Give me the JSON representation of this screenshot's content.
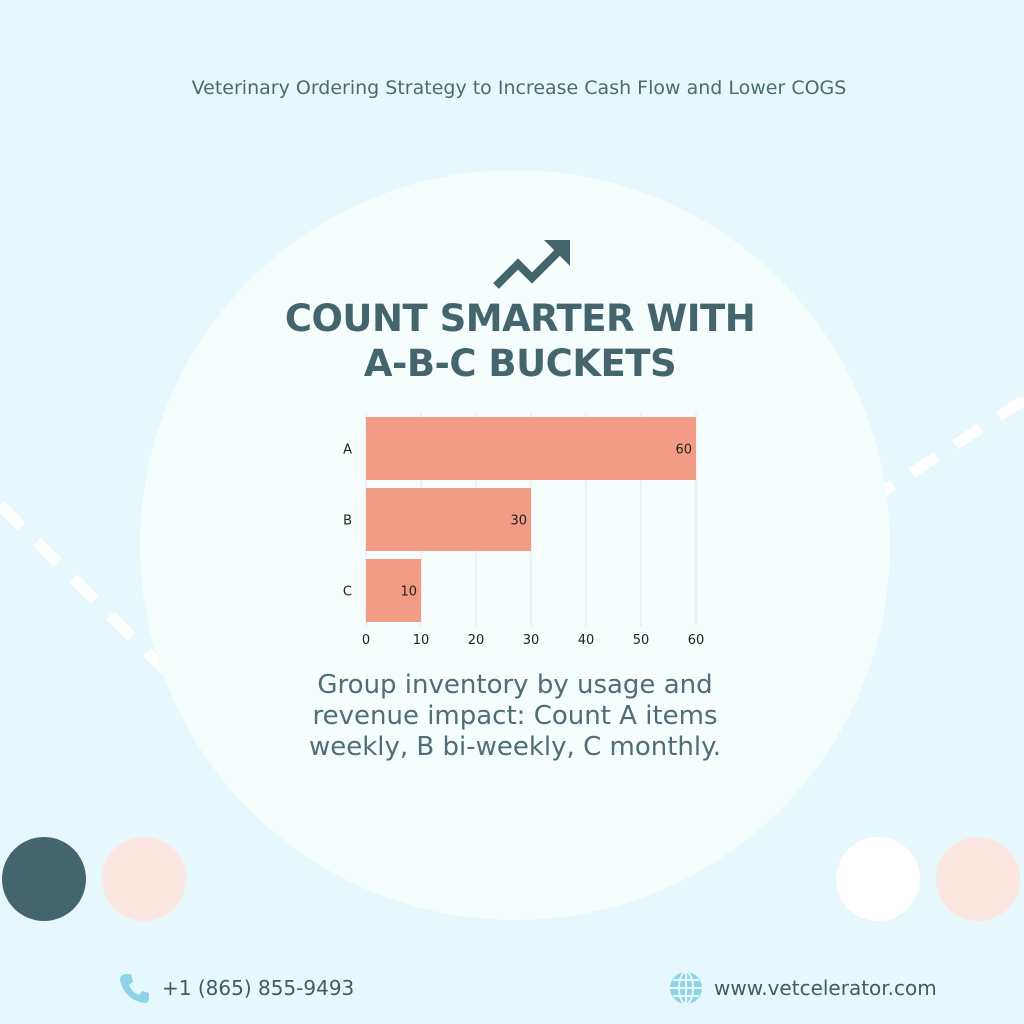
{
  "header": {
    "subtitle": "Veterinary Ordering Strategy to Increase Cash Flow and Lower COGS"
  },
  "headline": {
    "line1": "COUNT SMARTER WITH",
    "line2": "A-B-C BUCKETS"
  },
  "icons": {
    "trend": "trending-up-arrow-icon",
    "phone": "phone-icon",
    "web": "globe-icon"
  },
  "colors": {
    "background": "#e6f8fb",
    "accent_dark": "#44656e",
    "bar": "#f29c86",
    "peach": "#fde6e0"
  },
  "chart_data": {
    "type": "bar",
    "orientation": "horizontal",
    "categories": [
      "A",
      "B",
      "C"
    ],
    "values": [
      60,
      30,
      10
    ],
    "data_labels": [
      "60",
      "30",
      "10"
    ],
    "x_ticks": [
      "0",
      "10",
      "20",
      "30",
      "40",
      "50",
      "60"
    ],
    "xlim": [
      0,
      60
    ],
    "grid": true,
    "title": "",
    "xlabel": "",
    "ylabel": ""
  },
  "description": "Group inventory by usage and revenue impact: Count A items weekly, B bi-weekly, C monthly.",
  "footer": {
    "phone": "+1 (865) 855-9493",
    "website": "www.vetcelerator.com"
  }
}
